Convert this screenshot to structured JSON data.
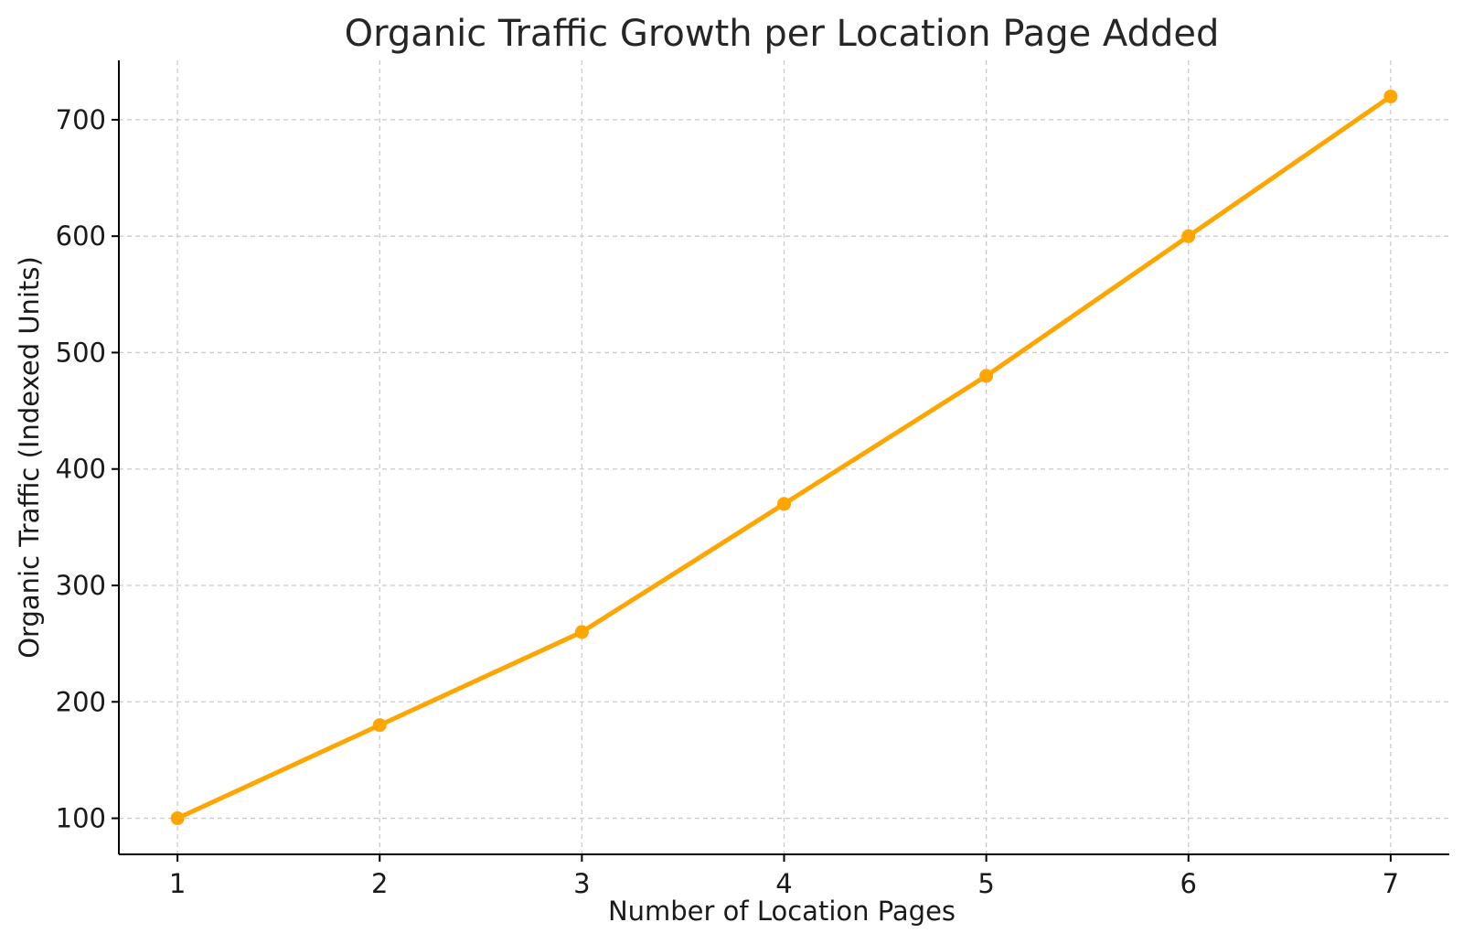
{
  "chart_data": {
    "type": "line",
    "title": "Organic Traffic Growth per Location Page Added",
    "xlabel": "Number of Location Pages",
    "ylabel": "Organic Traffic (Indexed Units)",
    "x": [
      1,
      2,
      3,
      4,
      5,
      6,
      7
    ],
    "series": [
      {
        "values": [
          100,
          180,
          260,
          370,
          480,
          600,
          720
        ],
        "color": "#FFA500",
        "marker": "circle"
      }
    ],
    "xticks": [
      "1",
      "2",
      "3",
      "4",
      "5",
      "6",
      "7"
    ],
    "yticks": [
      "100",
      "200",
      "300",
      "400",
      "500",
      "600",
      "700"
    ],
    "xlim": [
      0.71,
      7.29
    ],
    "ylim": [
      69,
      751
    ],
    "grid": true,
    "grid_style": "dashed"
  }
}
